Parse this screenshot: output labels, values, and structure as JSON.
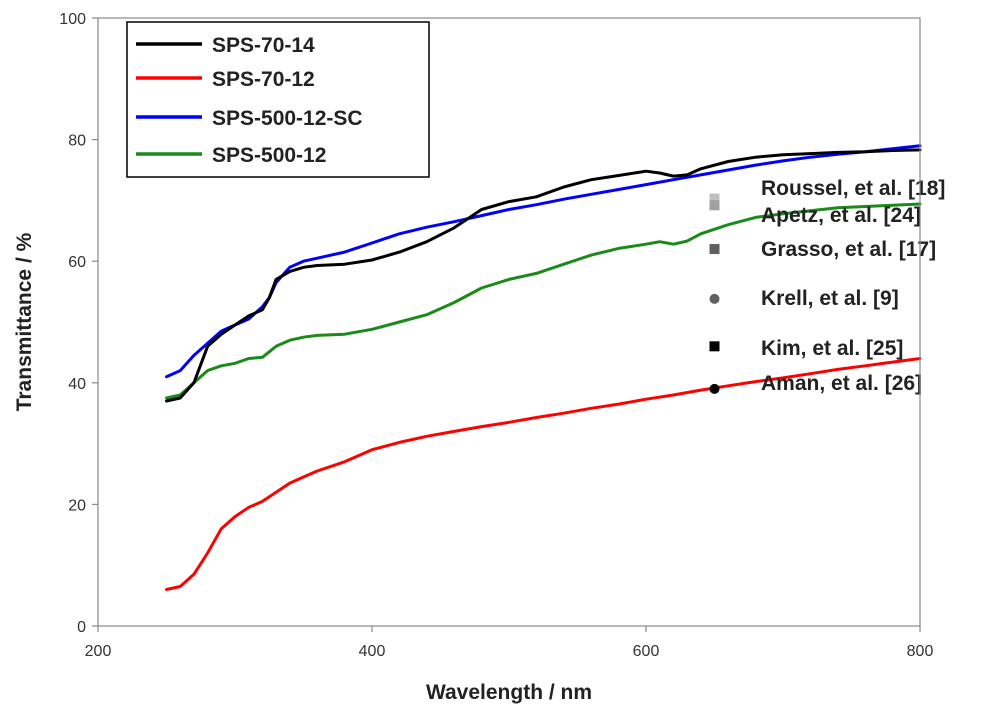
{
  "chart_data": {
    "type": "line",
    "title": "",
    "xlabel": "Wavelength / nm",
    "ylabel": "Transmittance / %",
    "xlim": [
      200,
      800
    ],
    "ylim": [
      0,
      100
    ],
    "x_ticks": [
      200,
      400,
      600,
      800
    ],
    "y_ticks": [
      0,
      20,
      40,
      60,
      80,
      100
    ],
    "grid": false,
    "legend_position": "top-left",
    "series": [
      {
        "name": "SPS-70-14",
        "color": "#000000",
        "points": [
          [
            250,
            37
          ],
          [
            260,
            37.5
          ],
          [
            270,
            40
          ],
          [
            280,
            46
          ],
          [
            290,
            48
          ],
          [
            300,
            49.5
          ],
          [
            310,
            51
          ],
          [
            320,
            52
          ],
          [
            325,
            54
          ],
          [
            330,
            57
          ],
          [
            340,
            58.3
          ],
          [
            350,
            59
          ],
          [
            360,
            59.3
          ],
          [
            380,
            59.5
          ],
          [
            400,
            60.2
          ],
          [
            420,
            61.5
          ],
          [
            440,
            63.2
          ],
          [
            460,
            65.5
          ],
          [
            480,
            68.5
          ],
          [
            500,
            69.8
          ],
          [
            520,
            70.6
          ],
          [
            540,
            72.2
          ],
          [
            560,
            73.4
          ],
          [
            580,
            74.1
          ],
          [
            600,
            74.8
          ],
          [
            610,
            74.5
          ],
          [
            620,
            74
          ],
          [
            630,
            74.2
          ],
          [
            640,
            75.2
          ],
          [
            660,
            76.4
          ],
          [
            680,
            77.1
          ],
          [
            700,
            77.5
          ],
          [
            720,
            77.7
          ],
          [
            740,
            77.9
          ],
          [
            760,
            78
          ],
          [
            780,
            78.2
          ],
          [
            800,
            78.3
          ]
        ]
      },
      {
        "name": "SPS-70-12",
        "color": "#ff0000",
        "points": [
          [
            250,
            6
          ],
          [
            260,
            6.5
          ],
          [
            270,
            8.5
          ],
          [
            280,
            12
          ],
          [
            290,
            16
          ],
          [
            300,
            18
          ],
          [
            310,
            19.5
          ],
          [
            320,
            20.5
          ],
          [
            330,
            22
          ],
          [
            340,
            23.5
          ],
          [
            350,
            24.5
          ],
          [
            360,
            25.5
          ],
          [
            380,
            27
          ],
          [
            400,
            29
          ],
          [
            420,
            30.2
          ],
          [
            440,
            31.2
          ],
          [
            460,
            32
          ],
          [
            480,
            32.8
          ],
          [
            500,
            33.5
          ],
          [
            520,
            34.3
          ],
          [
            540,
            35
          ],
          [
            560,
            35.8
          ],
          [
            580,
            36.5
          ],
          [
            600,
            37.3
          ],
          [
            620,
            38
          ],
          [
            640,
            38.8
          ],
          [
            660,
            39.5
          ],
          [
            680,
            40.2
          ],
          [
            700,
            40.8
          ],
          [
            720,
            41.5
          ],
          [
            740,
            42.2
          ],
          [
            760,
            42.8
          ],
          [
            780,
            43.4
          ],
          [
            800,
            44
          ]
        ]
      },
      {
        "name": "SPS-500-12-SC",
        "color": "#0000ff",
        "points": [
          [
            250,
            41
          ],
          [
            260,
            42
          ],
          [
            270,
            44.5
          ],
          [
            280,
            46.5
          ],
          [
            290,
            48.5
          ],
          [
            300,
            49.5
          ],
          [
            310,
            50.5
          ],
          [
            320,
            52.5
          ],
          [
            325,
            54
          ],
          [
            330,
            56.5
          ],
          [
            340,
            59
          ],
          [
            350,
            60
          ],
          [
            360,
            60.5
          ],
          [
            380,
            61.5
          ],
          [
            400,
            63
          ],
          [
            420,
            64.5
          ],
          [
            440,
            65.6
          ],
          [
            460,
            66.5
          ],
          [
            480,
            67.5
          ],
          [
            500,
            68.5
          ],
          [
            520,
            69.3
          ],
          [
            540,
            70.2
          ],
          [
            560,
            71
          ],
          [
            580,
            71.8
          ],
          [
            600,
            72.6
          ],
          [
            620,
            73.4
          ],
          [
            640,
            74.2
          ],
          [
            660,
            75
          ],
          [
            680,
            75.8
          ],
          [
            700,
            76.5
          ],
          [
            720,
            77.1
          ],
          [
            740,
            77.6
          ],
          [
            760,
            78
          ],
          [
            780,
            78.5
          ],
          [
            800,
            79
          ]
        ]
      },
      {
        "name": "SPS-500-12",
        "color": "#1a8a1a",
        "points": [
          [
            250,
            37.5
          ],
          [
            260,
            38
          ],
          [
            270,
            40
          ],
          [
            280,
            42
          ],
          [
            290,
            42.8
          ],
          [
            300,
            43.2
          ],
          [
            310,
            44
          ],
          [
            320,
            44.2
          ],
          [
            330,
            46
          ],
          [
            340,
            47
          ],
          [
            350,
            47.5
          ],
          [
            360,
            47.8
          ],
          [
            380,
            48
          ],
          [
            400,
            48.8
          ],
          [
            420,
            50
          ],
          [
            440,
            51.2
          ],
          [
            460,
            53.2
          ],
          [
            480,
            55.6
          ],
          [
            500,
            57
          ],
          [
            520,
            58
          ],
          [
            540,
            59.5
          ],
          [
            560,
            61
          ],
          [
            580,
            62.1
          ],
          [
            600,
            62.8
          ],
          [
            610,
            63.2
          ],
          [
            620,
            62.8
          ],
          [
            630,
            63.3
          ],
          [
            640,
            64.5
          ],
          [
            660,
            66
          ],
          [
            680,
            67.2
          ],
          [
            700,
            67.8
          ],
          [
            720,
            68.3
          ],
          [
            740,
            68.8
          ],
          [
            760,
            69
          ],
          [
            780,
            69.2
          ],
          [
            800,
            69.4
          ]
        ]
      }
    ],
    "reference_points": [
      {
        "label": "Roussel, et al. [18]",
        "x": 650,
        "y": 70.3,
        "marker": "square",
        "color": "#c0c0c0"
      },
      {
        "label": "Apetz, et al. [24]",
        "x": 650,
        "y": 69.2,
        "marker": "square",
        "color": "#a0a0a0"
      },
      {
        "label": "Grasso, et al. [17]",
        "x": 650,
        "y": 62,
        "marker": "square",
        "color": "#606060"
      },
      {
        "label": "Krell, et al. [9]",
        "x": 650,
        "y": 53.8,
        "marker": "circle",
        "color": "#606060"
      },
      {
        "label": "Kim, et al. [25]",
        "x": 650,
        "y": 46,
        "marker": "square",
        "color": "#000000"
      },
      {
        "label": "Aman, et al. [26]",
        "x": 650,
        "y": 39,
        "marker": "circle",
        "color": "#000000"
      }
    ]
  }
}
